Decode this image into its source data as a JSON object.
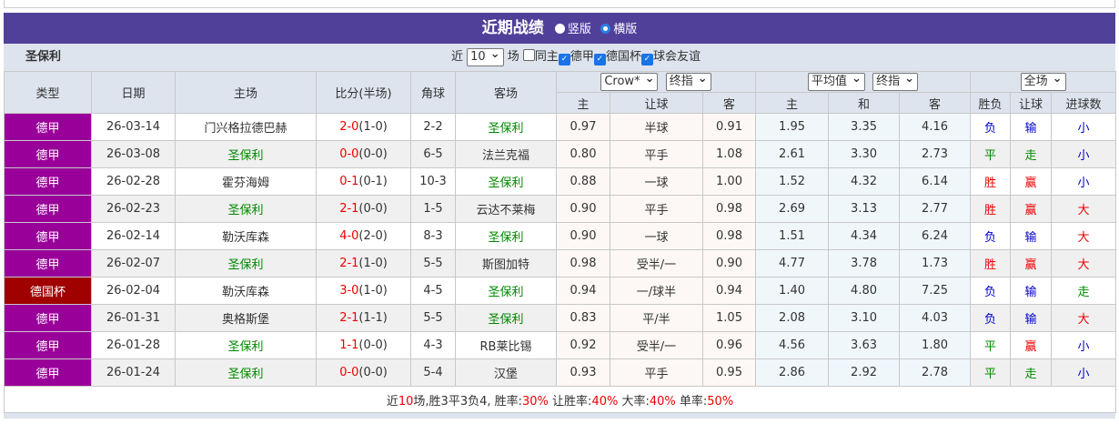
{
  "title": "近期战绩",
  "view_options": [
    "竖版",
    "横版"
  ],
  "view_selected": "横版",
  "team": "圣保利",
  "filter": {
    "prefix": "近",
    "count": "10",
    "suffix": "场",
    "options": [
      {
        "label": "同主",
        "checked": false
      },
      {
        "label": "德甲",
        "checked": true
      },
      {
        "label": "德国杯",
        "checked": true
      },
      {
        "label": "球会友谊",
        "checked": true
      }
    ]
  },
  "headers": {
    "type": "类型",
    "date": "日期",
    "home": "主场",
    "score": "比分(半场)",
    "corner": "角球",
    "away": "客场",
    "company": "Crow*",
    "asian_mode": "终指",
    "euro_company": "平均值",
    "euro_mode": "终指",
    "period": "全场",
    "asian": [
      "主",
      "让球",
      "客"
    ],
    "euro": [
      "主",
      "和",
      "客"
    ],
    "results": [
      "胜负",
      "让球",
      "进球数"
    ]
  },
  "colors": {
    "德甲": "#990099",
    "德国杯": "#a00000",
    "win": "#e00",
    "draw": "#080",
    "loss": "#00c"
  },
  "rows": [
    {
      "type": "德甲",
      "date": "26-03-14",
      "home": "门兴格拉德巴赫",
      "score": "2-0",
      "half": "(1-0)",
      "corner": "2-2",
      "away": "圣保利",
      "a1": "0.97",
      "hc": "半球",
      "a2": "0.91",
      "e1": "1.95",
      "e2": "3.35",
      "e3": "4.16",
      "r": "负",
      "h": "输",
      "g": "小"
    },
    {
      "type": "德甲",
      "date": "26-03-08",
      "home": "圣保利",
      "score": "0-0",
      "half": "(0-0)",
      "corner": "6-5",
      "away": "法兰克福",
      "a1": "0.80",
      "hc": "平手",
      "a2": "1.08",
      "e1": "2.61",
      "e2": "3.30",
      "e3": "2.73",
      "r": "平",
      "h": "走",
      "g": "小"
    },
    {
      "type": "德甲",
      "date": "26-02-28",
      "home": "霍芬海姆",
      "score": "0-1",
      "half": "(0-1)",
      "corner": "10-3",
      "away": "圣保利",
      "a1": "0.88",
      "hc": "一球",
      "a2": "1.00",
      "e1": "1.52",
      "e2": "4.32",
      "e3": "6.14",
      "r": "胜",
      "h": "赢",
      "g": "小"
    },
    {
      "type": "德甲",
      "date": "26-02-23",
      "home": "圣保利",
      "score": "2-1",
      "half": "(0-0)",
      "corner": "1-5",
      "away": "云达不莱梅",
      "a1": "0.90",
      "hc": "平手",
      "a2": "0.98",
      "e1": "2.69",
      "e2": "3.13",
      "e3": "2.77",
      "r": "胜",
      "h": "赢",
      "g": "大"
    },
    {
      "type": "德甲",
      "date": "26-02-14",
      "home": "勒沃库森",
      "score": "4-0",
      "half": "(2-0)",
      "corner": "8-3",
      "away": "圣保利",
      "a1": "0.90",
      "hc": "一球",
      "a2": "0.98",
      "e1": "1.51",
      "e2": "4.34",
      "e3": "6.24",
      "r": "负",
      "h": "输",
      "g": "大"
    },
    {
      "type": "德甲",
      "date": "26-02-07",
      "home": "圣保利",
      "score": "2-1",
      "half": "(1-0)",
      "corner": "5-5",
      "away": "斯图加特",
      "a1": "0.98",
      "hc": "受半/一",
      "a2": "0.90",
      "e1": "4.77",
      "e2": "3.78",
      "e3": "1.73",
      "r": "胜",
      "h": "赢",
      "g": "大"
    },
    {
      "type": "德国杯",
      "date": "26-02-04",
      "home": "勒沃库森",
      "score": "3-0",
      "half": "(1-0)",
      "corner": "4-5",
      "away": "圣保利",
      "a1": "0.94",
      "hc": "一/球半",
      "a2": "0.94",
      "e1": "1.40",
      "e2": "4.80",
      "e3": "7.25",
      "r": "负",
      "h": "输",
      "g": "走"
    },
    {
      "type": "德甲",
      "date": "26-01-31",
      "home": "奥格斯堡",
      "score": "2-1",
      "half": "(1-1)",
      "corner": "5-5",
      "away": "圣保利",
      "a1": "0.83",
      "hc": "平/半",
      "a2": "1.05",
      "e1": "2.08",
      "e2": "3.10",
      "e3": "4.03",
      "r": "负",
      "h": "输",
      "g": "大"
    },
    {
      "type": "德甲",
      "date": "26-01-28",
      "home": "圣保利",
      "score": "1-1",
      "half": "(0-0)",
      "corner": "4-3",
      "away": "RB莱比锡",
      "a1": "0.92",
      "hc": "受半/一",
      "a2": "0.96",
      "e1": "4.56",
      "e2": "3.63",
      "e3": "1.80",
      "r": "平",
      "h": "赢",
      "g": "小"
    },
    {
      "type": "德甲",
      "date": "26-01-24",
      "home": "圣保利",
      "score": "0-0",
      "half": "(0-0)",
      "corner": "5-4",
      "away": "汉堡",
      "a1": "0.93",
      "hc": "平手",
      "a2": "0.95",
      "e1": "2.86",
      "e2": "2.92",
      "e3": "2.78",
      "r": "平",
      "h": "走",
      "g": "小"
    }
  ],
  "summary": [
    {
      "t": "近"
    },
    {
      "t": "10",
      "red": true
    },
    {
      "t": "场,胜3平3负4, 胜率:"
    },
    {
      "t": "30%",
      "red": true
    },
    {
      "t": " 让胜率:"
    },
    {
      "t": "40%",
      "red": true
    },
    {
      "t": " 大率:"
    },
    {
      "t": "40%",
      "red": true
    },
    {
      "t": " 单率:"
    },
    {
      "t": "50%",
      "red": true
    }
  ]
}
